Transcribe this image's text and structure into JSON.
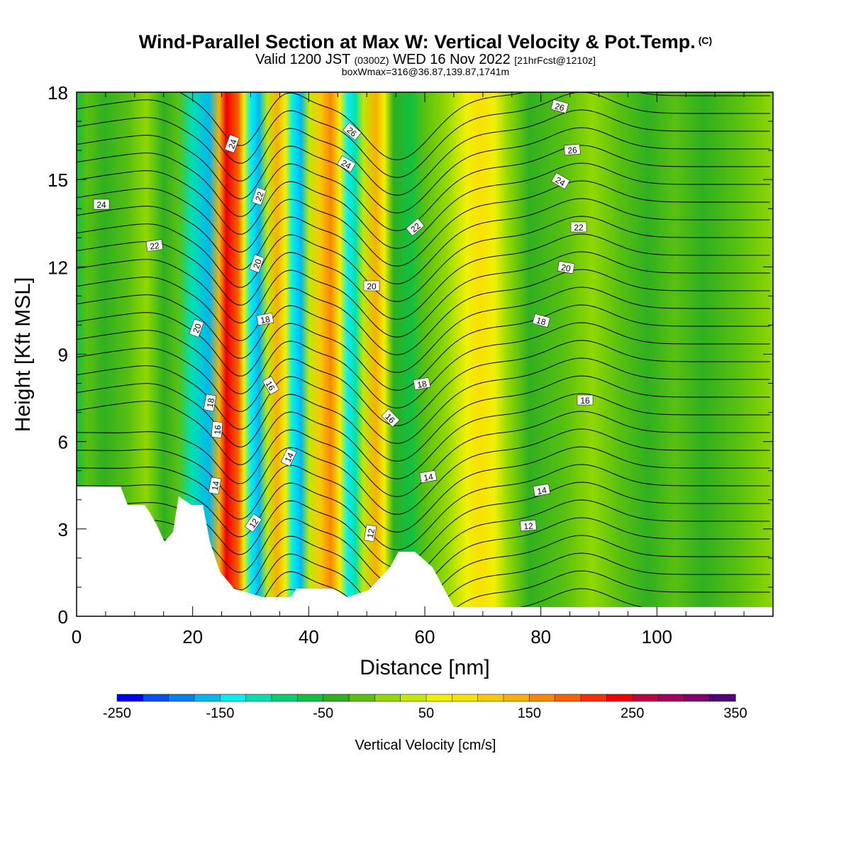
{
  "header": {
    "title": "Wind-Parallel Section at Max W: Vertical Velocity & Pot.Temp.",
    "copyright": "(C)",
    "valid_prefix": "Valid 1200 JST",
    "valid_zulu": "(0300Z)",
    "valid_date": "WED 16 Nov 2022",
    "forecast": "[21hrFcst@1210z]",
    "box_info": "boxWmax=316@36.87,139.87,1741m"
  },
  "chart_data": {
    "type": "heatmap",
    "xlabel": "Distance [nm]",
    "ylabel": "Height [Kft MSL]",
    "xlim": [
      0,
      120
    ],
    "ylim": [
      0,
      18
    ],
    "x_ticks": [
      0,
      20,
      40,
      60,
      80,
      100
    ],
    "y_ticks": [
      0,
      3,
      6,
      9,
      12,
      15,
      18
    ],
    "colorbar": {
      "label": "Vertical Velocity [cm/s]",
      "min": -250,
      "max": 350,
      "step": 25,
      "tick_labels": [
        "-250",
        "-150",
        "-50",
        "50",
        "150",
        "250",
        "350"
      ],
      "colors": [
        "#0000f0",
        "#0050f0",
        "#0080f0",
        "#00b8f0",
        "#00f0f0",
        "#00e0b0",
        "#00d070",
        "#10c040",
        "#30b020",
        "#58c010",
        "#90d800",
        "#c0e800",
        "#f0f000",
        "#f8e000",
        "#f8c800",
        "#f8b000",
        "#f88800",
        "#f86000",
        "#f83000",
        "#f00000",
        "#c00040",
        "#a00060",
        "#800070",
        "#500080"
      ]
    },
    "contour_labels": {
      "left_24": "24",
      "left_22": "22",
      "left_20": "20",
      "left_18": "18",
      "left_16": "16",
      "left_14": "14",
      "top_24": "24",
      "top_22": "22",
      "top_20": "20",
      "top_18": "18",
      "top_16": "16",
      "top_14": "14",
      "top_12": "12",
      "mid_26": "26",
      "mid_24": "24",
      "mid_22": "22",
      "mid_20": "20",
      "mid_18": "18",
      "mid_16": "16",
      "mid_14": "14",
      "mid_12": "12",
      "right_26a": "26",
      "right_26b": "26",
      "right_24": "24",
      "right_22": "22",
      "right_20": "20",
      "right_18": "18",
      "right_16": "16",
      "right_14": "14",
      "right_12": "12"
    }
  }
}
